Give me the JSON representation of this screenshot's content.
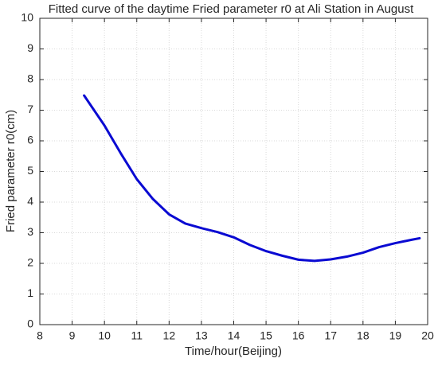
{
  "chart_data": {
    "type": "line",
    "title": "Fitted curve of the daytime Fried parameter r0 at Ali Station in August",
    "x_label": "Time/hour(Beijing)",
    "y_label": "Fried parameter r0(cm)",
    "x": [
      9.37,
      10,
      10.5,
      11,
      11.5,
      12,
      12.5,
      13,
      13.5,
      14,
      14.5,
      15,
      15.5,
      16,
      16.5,
      17,
      17.5,
      18,
      18.5,
      19,
      19.5,
      19.75
    ],
    "series": [
      {
        "name": "r0",
        "color": "#0a0ad2",
        "values": [
          7.48,
          6.5,
          5.6,
          4.75,
          4.1,
          3.6,
          3.3,
          3.15,
          3.02,
          2.85,
          2.6,
          2.4,
          2.25,
          2.12,
          2.08,
          2.13,
          2.22,
          2.35,
          2.53,
          2.66,
          2.77,
          2.82
        ]
      }
    ],
    "xlim": [
      8,
      20
    ],
    "xticks": [
      8,
      9,
      10,
      11,
      12,
      13,
      14,
      15,
      16,
      17,
      18,
      19,
      20
    ],
    "ylim": [
      0,
      10
    ],
    "yticks": [
      0,
      1,
      2,
      3,
      4,
      5,
      6,
      7,
      8,
      9,
      10
    ],
    "grid": true
  }
}
